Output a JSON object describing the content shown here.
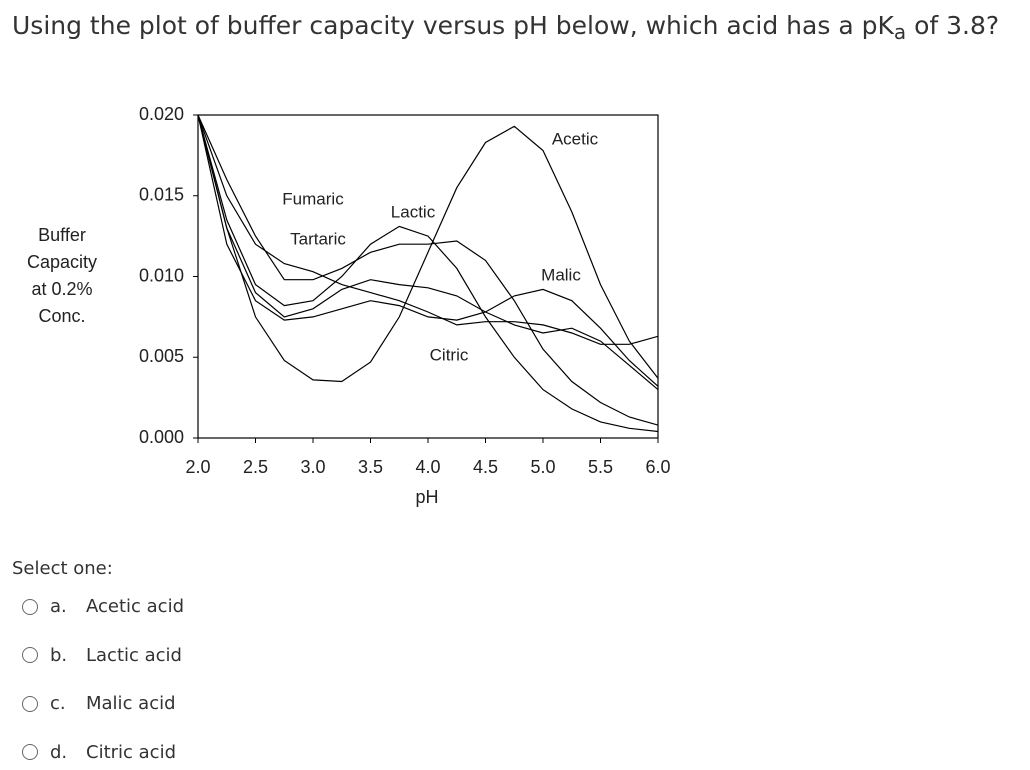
{
  "question": {
    "before": "Using the plot of buffer capacity versus pH below, which acid has a pK",
    "sub": "a",
    "after": " of 3.8?"
  },
  "chart_data": {
    "type": "line",
    "y_label": [
      "Buffer",
      "Capacity",
      "at 0.2%",
      "Conc."
    ],
    "x_label": "pH",
    "x": [
      2.0,
      2.25,
      2.5,
      2.75,
      3.0,
      3.25,
      3.5,
      3.75,
      4.0,
      4.25,
      4.5,
      4.75,
      5.0,
      5.25,
      5.5,
      5.75,
      6.0
    ],
    "series": [
      {
        "name": "Acetic",
        "color": "#000000",
        "values": [
          0.02,
          0.013,
          0.0075,
          0.0048,
          0.0036,
          0.0035,
          0.0047,
          0.0075,
          0.0115,
          0.0155,
          0.0183,
          0.0193,
          0.0178,
          0.014,
          0.0095,
          0.006,
          0.0037
        ]
      },
      {
        "name": "Lactic",
        "color": "#000000",
        "values": [
          0.02,
          0.0135,
          0.0095,
          0.0082,
          0.0085,
          0.01,
          0.012,
          0.0131,
          0.0125,
          0.0105,
          0.0075,
          0.005,
          0.003,
          0.0018,
          0.001,
          0.0006,
          0.0004
        ]
      },
      {
        "name": "Citric",
        "color": "#000000",
        "values": [
          0.02,
          0.013,
          0.009,
          0.0075,
          0.008,
          0.0092,
          0.0098,
          0.0095,
          0.0093,
          0.0088,
          0.0078,
          0.007,
          0.0065,
          0.0068,
          0.006,
          0.0045,
          0.003
        ]
      },
      {
        "name": "Malic",
        "color": "#000000",
        "values": [
          0.02,
          0.012,
          0.0085,
          0.0073,
          0.0075,
          0.008,
          0.0085,
          0.0082,
          0.0075,
          0.0073,
          0.0078,
          0.0088,
          0.0092,
          0.0085,
          0.0068,
          0.0048,
          0.0032
        ]
      },
      {
        "name": "Fumaric",
        "color": "#000000",
        "values": [
          0.02,
          0.015,
          0.012,
          0.0108,
          0.0103,
          0.0095,
          0.009,
          0.0085,
          0.0078,
          0.007,
          0.0072,
          0.0072,
          0.007,
          0.0065,
          0.0058,
          0.0058,
          0.0063
        ]
      },
      {
        "name": "Tartaric",
        "color": "#000000",
        "values": [
          0.02,
          0.016,
          0.0125,
          0.0098,
          0.0098,
          0.0105,
          0.0115,
          0.012,
          0.012,
          0.0122,
          0.011,
          0.0085,
          0.0055,
          0.0035,
          0.0022,
          0.0013,
          0.0008
        ]
      }
    ],
    "xlim": [
      2.0,
      6.0
    ],
    "ylim": [
      0.0,
      0.02
    ],
    "xticks": [
      {
        "value": 2.0,
        "label": "2.0"
      },
      2.5,
      {
        "value": 3.0,
        "label": "3.0"
      },
      3.5,
      {
        "value": 4.0,
        "label": "4.0"
      },
      4.5,
      {
        "value": 5.0,
        "label": "5.0"
      },
      5.5,
      {
        "value": 6.0,
        "label": "6.0"
      }
    ],
    "yticks": [
      {
        "value": 0.0,
        "label": "0.000"
      },
      0.005,
      {
        "value": 0.01,
        "label": "0.010"
      },
      0.015,
      {
        "value": 0.02,
        "label": "0.020"
      }
    ]
  },
  "prompt": "Select one:",
  "options": [
    {
      "letter": "a.",
      "text": "Acetic acid"
    },
    {
      "letter": "b.",
      "text": "Lactic acid"
    },
    {
      "letter": "c.",
      "text": "Malic acid"
    },
    {
      "letter": "d.",
      "text": "Citric acid"
    }
  ]
}
